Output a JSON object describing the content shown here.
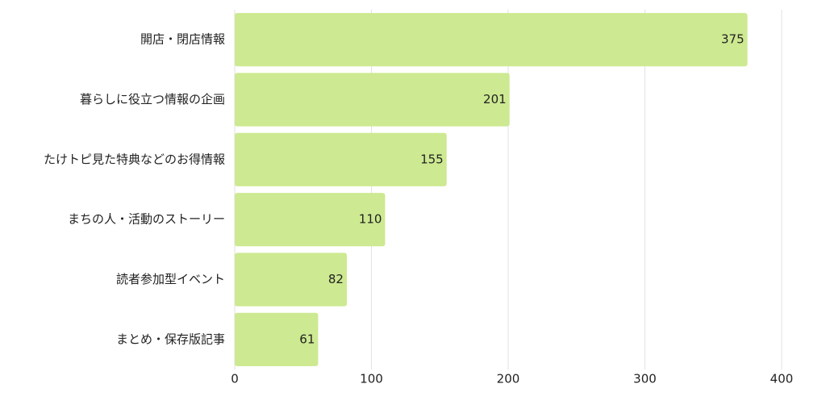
{
  "chart_data": {
    "type": "bar",
    "orientation": "horizontal",
    "categories": [
      "開店・閉店情報",
      "暮らしに役立つ情報の企画",
      "たけトピ見た特典などのお得情報",
      "まちの人・活動のストーリー",
      "読者参加型イベント",
      "まとめ・保存版記事"
    ],
    "values": [
      375,
      201,
      155,
      110,
      82,
      61
    ],
    "color": "#cde991",
    "xlim": [
      0,
      400
    ],
    "xticks": [
      0,
      100,
      200,
      300,
      400
    ],
    "grid": true
  }
}
